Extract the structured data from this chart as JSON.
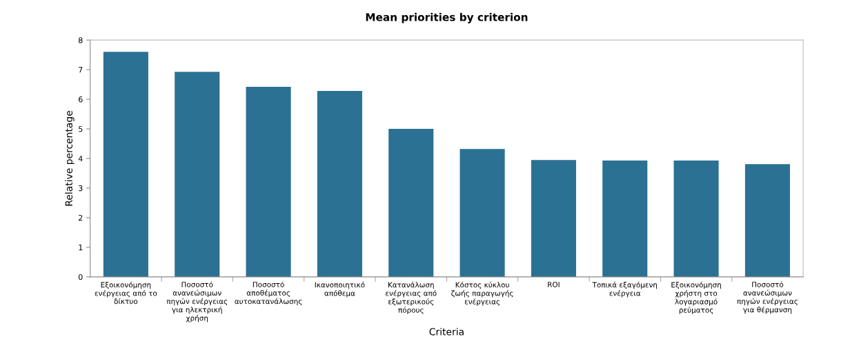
{
  "chart_data": {
    "type": "bar",
    "title": "Mean priorities by criterion",
    "xlabel": "Criteria",
    "ylabel": "Relative percentage",
    "categories": [
      "Εξοικονόμηση\nενέργειας από το\nδίκτυο",
      "Ποσοστό\nανανεώσιμων\nπηγών ενέργειας\nγια ηλεκτρική\nχρήση",
      "Ποσοστό\nαποθέματος\nαυτοκατανάλωσης",
      "Ικανοποιητικό\nαπόθεμα",
      "Κατανάλωση\nενέργειας από\nεξωτερικούς\nπόρους",
      "Κόστος κύκλου\nζωής παραγωγής\nενέργειας",
      "ROI",
      "Τοπικά εξαγόμενη\nενέργεια",
      "Εξοικονόμηση\nχρήστη στο\nλογαριασμό\nρεύματος",
      "Ποσοστό\nανανεώσιμων\nπηγών ενέργειας\nγια θέρμανση"
    ],
    "values": [
      7.6,
      6.93,
      6.42,
      6.28,
      5.0,
      4.32,
      3.95,
      3.93,
      3.93,
      3.81
    ],
    "color": "#2b7194",
    "ylim": [
      0,
      8
    ],
    "yticks": [
      0,
      1,
      2,
      3,
      4,
      5,
      6,
      7,
      8
    ],
    "grid": false,
    "legend": false
  }
}
